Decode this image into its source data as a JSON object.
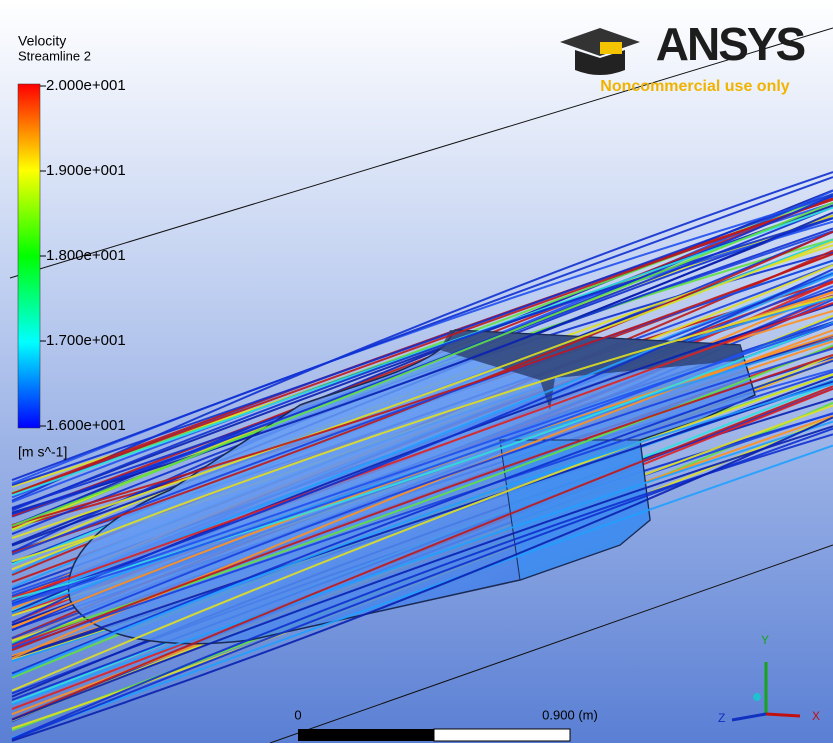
{
  "legend": {
    "title": "Velocity",
    "subtitle": "Streamline 2",
    "ticks": [
      "2.000e+001",
      "1.900e+001",
      "1.800e+001",
      "1.700e+001",
      "1.600e+001"
    ],
    "unit": "[m s^-1]"
  },
  "logo": {
    "brand": "ANSYS",
    "note": "Noncommercial use only"
  },
  "scale": {
    "start": "0",
    "end": "0.900 (m)"
  },
  "axes": {
    "x": "X",
    "y": "Y",
    "z": "Z"
  }
}
